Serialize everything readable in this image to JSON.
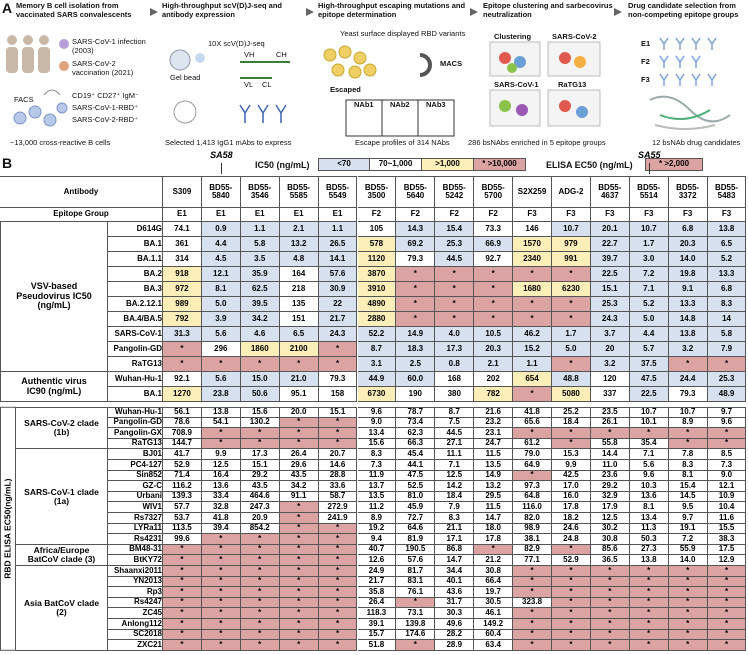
{
  "panel_a": {
    "label": "A",
    "steps": [
      {
        "title": "Memory B cell isolation from vaccinated SARS convalescents",
        "caption": "~13,000 cross-reactive B cells",
        "labels": [
          "SARS-CoV-1 infection (2003)",
          "SARS-CoV-2 vaccination (2021)",
          "FACS",
          "CD19⁺ CD27⁺ IgM⁻",
          "SARS-CoV-1-RBD⁺",
          "SARS-CoV-2-RBD⁺"
        ]
      },
      {
        "title": "High-throughput scV(D)J-seq and antibody expression",
        "caption": "Selected 1,413 IgG1 mAbs to express",
        "labels": [
          "10X scV(D)J-seq",
          "Gel bead",
          "VH",
          "CH",
          "VL",
          "CL"
        ]
      },
      {
        "title": "High-throughput escaping mutations and epitope determination",
        "caption": "Escape profiles of 314 NAbs",
        "labels": [
          "Yeast surface displayed RBD variants",
          "Escaped",
          "MACS",
          "NAb1",
          "NAb2",
          "NAb3"
        ]
      },
      {
        "title": "Epitope clustering and sarbecovirus neutralization",
        "caption": "286 bsNAbs enriched in 5 epitope groups",
        "labels": [
          "Clustering",
          "SARS-CoV-2",
          "SARS-CoV-1",
          "RaTG13"
        ]
      },
      {
        "title": "Drug candidate selection from non-competing epitope groups",
        "caption": "12 bsNAb drug candidates",
        "labels": [
          "E1",
          "F2",
          "F3"
        ]
      }
    ]
  },
  "panel_b": {
    "label": "B",
    "legend": {
      "ic50_title": "IC50 (ng/mL)",
      "ic50_items": [
        "<70",
        "70~1,000",
        ">1,000",
        "* >10,000"
      ],
      "elisa_title": "ELISA EC50 (ng/mL)",
      "elisa_item": "* >2,000"
    },
    "header": "Antibody",
    "epitope_header": "Epitope Group",
    "antibodies": [
      {
        "name": "S309",
        "epitope": "E1"
      },
      {
        "name": "BD55-5840",
        "epitope": "E1",
        "drug": "SA58"
      },
      {
        "name": "BD55-3546",
        "epitope": "E1"
      },
      {
        "name": "BD55-5585",
        "epitope": "E1"
      },
      {
        "name": "BD55-5549",
        "epitope": "E1"
      },
      {
        "name": "BD55-3500",
        "epitope": "F2"
      },
      {
        "name": "BD55-5640",
        "epitope": "F2"
      },
      {
        "name": "BD55-5242",
        "epitope": "F2"
      },
      {
        "name": "BD55-5700",
        "epitope": "F2"
      },
      {
        "name": "S2X259",
        "epitope": "F3"
      },
      {
        "name": "ADG-2",
        "epitope": "F3"
      },
      {
        "name": "BD55-4637",
        "epitope": "F3"
      },
      {
        "name": "BD55-5514",
        "epitope": "F3",
        "drug": "SA55"
      },
      {
        "name": "BD55-3372",
        "epitope": "F3"
      },
      {
        "name": "BD55-5483",
        "epitope": "F3"
      }
    ],
    "neutralization": [
      {
        "label": "VSV-based Pseudovirus IC50 (ng/mL)",
        "rows": [
          {
            "name": "D614G",
            "values": [
              "74.1",
              "0.9",
              "1.1",
              "2.1",
              "1.1",
              "105",
              "14.3",
              "15.4",
              "73.3",
              "146",
              "10.7",
              "20.1",
              "10.7",
              "6.8",
              "13.8"
            ]
          },
          {
            "name": "BA.1",
            "values": [
              "361",
              "4.4",
              "5.8",
              "13.2",
              "26.5",
              "578",
              "69.2",
              "25.3",
              "66.9",
              "1570",
              "979",
              "22.7",
              "1.7",
              "20.3",
              "6.5"
            ]
          },
          {
            "name": "BA.1.1",
            "values": [
              "314",
              "4.5",
              "3.5",
              "4.8",
              "14.1",
              "1120",
              "79.3",
              "44.5",
              "92.7",
              "2340",
              "991",
              "39.7",
              "3.0",
              "14.0",
              "5.2"
            ]
          },
          {
            "name": "BA.2",
            "values": [
              "918",
              "12.1",
              "35.9",
              "164",
              "57.6",
              "3870",
              "*",
              "*",
              "*",
              "*",
              "*",
              "22.5",
              "7.2",
              "19.8",
              "13.3"
            ]
          },
          {
            "name": "BA.3",
            "values": [
              "972",
              "8.1",
              "62.5",
              "218",
              "30.9",
              "3910",
              "*",
              "*",
              "*",
              "1680",
              "6230",
              "15.1",
              "7.1",
              "9.1",
              "6.8"
            ]
          },
          {
            "name": "BA.2.12.1",
            "values": [
              "989",
              "5.0",
              "39.5",
              "135",
              "22",
              "4890",
              "*",
              "*",
              "*",
              "*",
              "*",
              "25.3",
              "5.2",
              "13.3",
              "8.3"
            ]
          },
          {
            "name": "BA.4/BA.5",
            "values": [
              "792",
              "3.9",
              "34.2",
              "151",
              "21.7",
              "2880",
              "*",
              "*",
              "*",
              "*",
              "*",
              "24.3",
              "5.0",
              "14.8",
              "14"
            ]
          },
          {
            "name": "SARS-CoV-1",
            "values": [
              "31.3",
              "5.6",
              "4.6",
              "6.5",
              "24.3",
              "52.2",
              "14.9",
              "4.0",
              "10.5",
              "46.2",
              "1.7",
              "3.7",
              "4.4",
              "13.8",
              "5.8"
            ]
          },
          {
            "name": "Pangolin-GD",
            "values": [
              "*",
              "296",
              "1860",
              "2100",
              "*",
              "8.7",
              "18.3",
              "17.3",
              "20.3",
              "15.2",
              "5.0",
              "20",
              "5.7",
              "3.2",
              "7.9"
            ]
          },
          {
            "name": "RaTG13",
            "values": [
              "*",
              "*",
              "*",
              "*",
              "*",
              "3.1",
              "2.5",
              "0.8",
              "2.1",
              "1.1",
              "*",
              "3.2",
              "37.5",
              "*",
              "*"
            ]
          }
        ]
      },
      {
        "label": "Authentic virus IC90 (ng/mL)",
        "rows": [
          {
            "name": "Wuhan-Hu-1",
            "values": [
              "92.1",
              "5.6",
              "15.0",
              "21.0",
              "79.3",
              "44.9",
              "60.0",
              "168",
              "202",
              "654",
              "48.8",
              "120",
              "47.5",
              "24.4",
              "25.3"
            ]
          },
          {
            "name": "BA.1",
            "values": [
              "1270",
              "23.8",
              "50.6",
              "95.1",
              "158",
              "6730",
              "190",
              "380",
              "782",
              "*",
              "5080",
              "337",
              "22.5",
              "79.3",
              "48.9"
            ]
          }
        ]
      }
    ],
    "elisa": {
      "label": "RBD ELISA EC50(ng/mL)",
      "groups": [
        {
          "label": "SARS-CoV-2 clade (1b)",
          "rows": [
            {
              "name": "Wuhan-Hu-1",
              "values": [
                "56.1",
                "13.8",
                "15.6",
                "20.0",
                "15.1",
                "9.6",
                "78.7",
                "8.7",
                "21.6",
                "41.8",
                "25.2",
                "23.5",
                "10.7",
                "10.7",
                "9.7"
              ]
            },
            {
              "name": "Pangolin-GD",
              "values": [
                "78.6",
                "54.1",
                "130.2",
                "*",
                "*",
                "9.0",
                "73.4",
                "7.5",
                "23.2",
                "65.6",
                "18.4",
                "26.1",
                "10.1",
                "8.9",
                "9.6"
              ]
            },
            {
              "name": "Pangolin-GX",
              "values": [
                "708.9",
                "*",
                "*",
                "*",
                "*",
                "13.4",
                "62.3",
                "44.5",
                "23.1",
                "*",
                "*",
                "*",
                "*",
                "*",
                "*"
              ]
            },
            {
              "name": "RaTG13",
              "values": [
                "144.7",
                "*",
                "*",
                "*",
                "*",
                "15.6",
                "66.3",
                "27.1",
                "24.7",
                "61.2",
                "*",
                "55.8",
                "35.4",
                "*",
                "*"
              ]
            }
          ]
        },
        {
          "label": "SARS-CoV-1 clade (1a)",
          "rows": [
            {
              "name": "BJ01",
              "values": [
                "41.7",
                "9.9",
                "17.3",
                "26.4",
                "20.7",
                "8.3",
                "45.4",
                "11.1",
                "11.5",
                "79.0",
                "15.3",
                "14.4",
                "7.1",
                "7.8",
                "8.5"
              ]
            },
            {
              "name": "PC4-127",
              "values": [
                "52.9",
                "12.5",
                "15.1",
                "29.6",
                "14.6",
                "7.3",
                "44.1",
                "7.1",
                "13.5",
                "64.9",
                "9.9",
                "11.0",
                "5.6",
                "8.3",
                "7.3"
              ]
            },
            {
              "name": "Sin852",
              "values": [
                "71.4",
                "16.4",
                "29.2",
                "43.5",
                "28.8",
                "11.9",
                "47.5",
                "12.5",
                "14.9",
                "*",
                "42.5",
                "23.6",
                "9.6",
                "8.1",
                "9.0"
              ]
            },
            {
              "name": "GZ-C",
              "values": [
                "116.2",
                "13.6",
                "43.5",
                "34.2",
                "33.6",
                "13.7",
                "52.5",
                "14.2",
                "13.2",
                "97.3",
                "17.0",
                "29.2",
                "10.3",
                "15.4",
                "12.1"
              ]
            },
            {
              "name": "Urbani",
              "values": [
                "139.3",
                "33.4",
                "464.6",
                "91.1",
                "58.7",
                "13.5",
                "81.0",
                "18.4",
                "29.5",
                "64.8",
                "16.0",
                "32.9",
                "13.6",
                "14.5",
                "10.9"
              ]
            },
            {
              "name": "WIV1",
              "values": [
                "57.7",
                "32.8",
                "247.3",
                "*",
                "272.9",
                "11.2",
                "45.9",
                "7.9",
                "11.5",
                "116.0",
                "17.8",
                "17.9",
                "8.1",
                "9.5",
                "10.4"
              ]
            },
            {
              "name": "Rs7327",
              "values": [
                "53.7",
                "41.8",
                "20.9",
                "*",
                "241.9",
                "8.9",
                "72.7",
                "8.3",
                "14.7",
                "82.0",
                "18.2",
                "12.5",
                "13.4",
                "9.7",
                "11.6"
              ]
            },
            {
              "name": "LYRa11",
              "values": [
                "113.5",
                "39.4",
                "854.2",
                "*",
                "*",
                "19.2",
                "64.6",
                "21.1",
                "18.0",
                "98.9",
                "24.6",
                "30.2",
                "11.3",
                "19.1",
                "15.5"
              ]
            },
            {
              "name": "Rs4231",
              "values": [
                "99.6",
                "*",
                "*",
                "*",
                "*",
                "9.4",
                "81.9",
                "17.1",
                "17.8",
                "38.1",
                "24.8",
                "30.8",
                "50.3",
                "7.2",
                "38.3"
              ]
            }
          ]
        },
        {
          "label": "Africa/Europe BatCoV clade (3)",
          "rows": [
            {
              "name": "BM48-31",
              "values": [
                "*",
                "*",
                "*",
                "*",
                "*",
                "40.7",
                "190.5",
                "86.8",
                "*",
                "82.9",
                "*",
                "85.6",
                "27.3",
                "55.9",
                "17.5"
              ]
            },
            {
              "name": "BtKY72",
              "values": [
                "*",
                "*",
                "*",
                "*",
                "*",
                "12.6",
                "57.6",
                "14.7",
                "21.2",
                "77.1",
                "52.9",
                "36.5",
                "13.8",
                "14.0",
                "12.9"
              ]
            }
          ]
        },
        {
          "label": "Asia BatCoV clade (2)",
          "rows": [
            {
              "name": "Shaanxi2011",
              "values": [
                "*",
                "*",
                "*",
                "*",
                "*",
                "24.9",
                "81.7",
                "34.4",
                "30.8",
                "*",
                "*",
                "*",
                "*",
                "*",
                "*"
              ]
            },
            {
              "name": "YN2013",
              "values": [
                "*",
                "*",
                "*",
                "*",
                "*",
                "21.7",
                "83.1",
                "40.1",
                "66.4",
                "*",
                "*",
                "*",
                "*",
                "*",
                "*"
              ]
            },
            {
              "name": "Rp3",
              "values": [
                "*",
                "*",
                "*",
                "*",
                "*",
                "35.8",
                "76.1",
                "43.6",
                "19.7",
                "*",
                "*",
                "*",
                "*",
                "*",
                "*"
              ]
            },
            {
              "name": "Rs4247",
              "values": [
                "*",
                "*",
                "*",
                "*",
                "*",
                "26.4",
                "*",
                "31.7",
                "30.5",
                "323.8",
                "*",
                "*",
                "*",
                "*",
                "*"
              ]
            },
            {
              "name": "ZC45",
              "values": [
                "*",
                "*",
                "*",
                "*",
                "*",
                "118.3",
                "73.1",
                "30.3",
                "46.1",
                "*",
                "*",
                "*",
                "*",
                "*",
                "*"
              ]
            },
            {
              "name": "Anlong112",
              "values": [
                "*",
                "*",
                "*",
                "*",
                "*",
                "39.1",
                "139.8",
                "49.6",
                "149.2",
                "*",
                "*",
                "*",
                "*",
                "*",
                "*"
              ]
            },
            {
              "name": "SC2018",
              "values": [
                "*",
                "*",
                "*",
                "*",
                "*",
                "15.7",
                "174.6",
                "28.2",
                "60.4",
                "*",
                "*",
                "*",
                "*",
                "*",
                "*"
              ]
            },
            {
              "name": "ZXC21",
              "values": [
                "*",
                "*",
                "*",
                "*",
                "*",
                "51.8",
                "*",
                "28.9",
                "63.4",
                "*",
                "*",
                "*",
                "*",
                "*",
                "*"
              ]
            }
          ]
        }
      ]
    }
  }
}
